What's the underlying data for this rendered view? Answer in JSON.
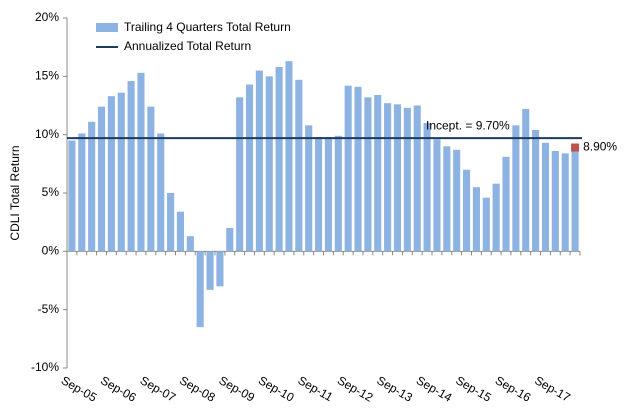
{
  "chart_data": {
    "type": "bar",
    "y_label": "CDLI Total Return",
    "categories": [
      null,
      "Sep-05",
      null,
      null,
      null,
      "Sep-06",
      null,
      null,
      null,
      "Sep-07",
      null,
      null,
      null,
      "Sep-08",
      null,
      null,
      null,
      "Sep-09",
      null,
      null,
      null,
      "Sep-10",
      null,
      null,
      null,
      "Sep-11",
      null,
      null,
      null,
      "Sep-12",
      null,
      null,
      null,
      "Sep-13",
      null,
      null,
      null,
      "Sep-14",
      null,
      null,
      null,
      "Sep-15",
      null,
      null,
      null,
      "Sep-16",
      null,
      null,
      null,
      "Sep-17",
      null,
      null
    ],
    "series": [
      {
        "name": "Trailing 4 Quarters Total Return",
        "color": "#8db3e2",
        "values": [
          9.5,
          10.1,
          11.1,
          12.4,
          13.3,
          13.6,
          14.6,
          15.3,
          12.4,
          10.1,
          5.0,
          3.4,
          1.3,
          -6.5,
          -3.3,
          -3.0,
          2.0,
          13.2,
          14.3,
          15.5,
          15.0,
          15.8,
          16.3,
          14.7,
          10.8,
          9.8,
          9.8,
          9.9,
          14.2,
          14.1,
          13.2,
          13.4,
          12.7,
          12.6,
          12.3,
          12.5,
          11.0,
          9.6,
          9.0,
          8.7,
          7.0,
          5.5,
          4.6,
          5.8,
          8.1,
          10.8,
          12.2,
          10.4,
          9.3,
          8.6,
          8.4,
          8.9
        ]
      }
    ],
    "line": {
      "name": "Annualized Total Return",
      "color": "#1f3a5f",
      "value": 9.7,
      "label": "Incept.  = 9.70%"
    },
    "latest": {
      "value": 8.9,
      "label": "8.90%",
      "color": "#c0504d"
    },
    "ylim": [
      -10,
      20
    ],
    "yticks": [
      {
        "value": -10,
        "label": "-10%"
      },
      {
        "value": -5,
        "label": "-5%"
      },
      {
        "value": 0,
        "label": "0%"
      },
      {
        "value": 5,
        "label": "5%"
      },
      {
        "value": 10,
        "label": "10%"
      },
      {
        "value": 15,
        "label": "15%"
      },
      {
        "value": 20,
        "label": "20%"
      }
    ]
  }
}
